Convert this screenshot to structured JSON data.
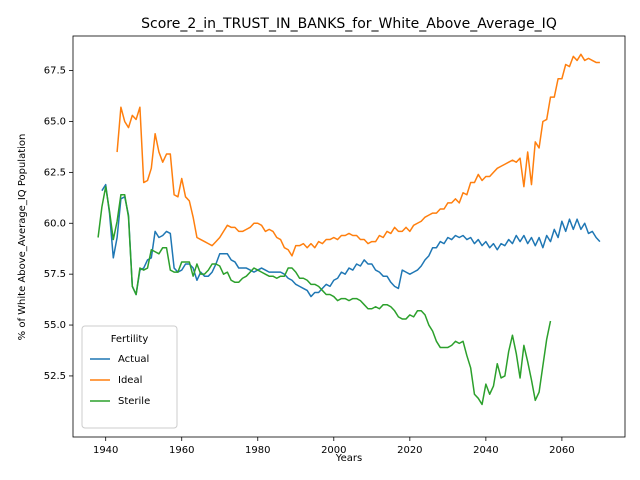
{
  "chart_data": {
    "type": "line",
    "title": "Score_2_in_TRUST_IN_BANKS_for_White_Above_Average_IQ",
    "xlabel": "Years",
    "ylabel": "% of White Above_Average_IQ Population",
    "legend_title": "Fertility",
    "legend": "lower left",
    "xlim": [
      1931.4,
      2076.6
    ],
    "ylim": [
      49.5,
      69.2
    ],
    "xticks": [
      1940,
      1960,
      1980,
      2000,
      2020,
      2040,
      2060
    ],
    "yticks": [
      52.5,
      {
        "value": 55,
        "label": "55.0"
      },
      57.5,
      {
        "value": 60,
        "label": "60.0"
      },
      62.5,
      {
        "value": 65,
        "label": "65.0"
      },
      67.5
    ],
    "x": [
      1938,
      1939,
      1940,
      1941,
      1942,
      1943,
      1944,
      1945,
      1946,
      1947,
      1948,
      1949,
      1950,
      1951,
      1952,
      1953,
      1954,
      1955,
      1956,
      1957,
      1958,
      1959,
      1960,
      1961,
      1962,
      1963,
      1964,
      1965,
      1966,
      1967,
      1968,
      1969,
      1970,
      1971,
      1972,
      1973,
      1974,
      1975,
      1976,
      1977,
      1978,
      1979,
      1980,
      1981,
      1982,
      1983,
      1984,
      1985,
      1986,
      1987,
      1988,
      1989,
      1990,
      1991,
      1992,
      1993,
      1994,
      1995,
      1996,
      1997,
      1998,
      1999,
      2000,
      2001,
      2002,
      2003,
      2004,
      2005,
      2006,
      2007,
      2008,
      2009,
      2010,
      2011,
      2012,
      2013,
      2014,
      2015,
      2016,
      2017,
      2018,
      2019,
      2020,
      2021,
      2022,
      2023,
      2024,
      2025,
      2026,
      2027,
      2028,
      2029,
      2030,
      2031,
      2032,
      2033,
      2034,
      2035,
      2036,
      2037,
      2038,
      2039,
      2040,
      2041,
      2042,
      2043,
      2044,
      2045,
      2046,
      2047,
      2048,
      2049,
      2050,
      2051,
      2052,
      2053,
      2054,
      2055,
      2056,
      2057,
      2058,
      2059,
      2060,
      2061,
      2062,
      2063,
      2064,
      2065,
      2066,
      2067,
      2068,
      2069,
      2070
    ],
    "series": [
      {
        "name": "Actual",
        "color": "#1f77b4",
        "values": [
          null,
          61.6,
          61.9,
          60.5,
          58.3,
          59.3,
          61.2,
          61.3,
          60.4,
          56.9,
          56.5,
          57.7,
          57.8,
          58.2,
          58.3,
          59.6,
          59.3,
          59.4,
          59.6,
          59.5,
          57.8,
          57.6,
          57.7,
          58.0,
          58.0,
          57.8,
          57.2,
          57.6,
          57.4,
          57.4,
          57.6,
          58.0,
          58.5,
          58.5,
          58.5,
          58.2,
          58.1,
          57.8,
          57.8,
          57.8,
          57.7,
          57.6,
          57.7,
          57.8,
          57.7,
          57.6,
          57.6,
          57.6,
          57.6,
          57.5,
          57.3,
          57.2,
          57.0,
          56.9,
          56.8,
          56.7,
          56.4,
          56.6,
          56.6,
          56.8,
          57.0,
          56.9,
          57.2,
          57.3,
          57.6,
          57.5,
          57.8,
          57.7,
          58.0,
          57.9,
          58.2,
          58.0,
          58.0,
          57.7,
          57.6,
          57.4,
          57.4,
          57.1,
          56.9,
          56.8,
          57.7,
          57.6,
          57.5,
          57.6,
          57.7,
          57.9,
          58.2,
          58.4,
          58.8,
          58.8,
          59.1,
          59.0,
          59.3,
          59.2,
          59.4,
          59.3,
          59.4,
          59.2,
          59.3,
          59.0,
          59.2,
          58.9,
          59.1,
          58.8,
          59.0,
          58.7,
          59.0,
          58.9,
          59.2,
          59.0,
          59.4,
          59.1,
          59.4,
          59.0,
          59.3,
          58.9,
          59.3,
          58.8,
          59.4,
          59.1,
          59.7,
          59.3,
          60.1,
          59.6,
          60.2,
          59.7,
          60.2,
          59.7,
          60.0,
          59.5,
          59.6,
          59.3,
          59.1
        ]
      },
      {
        "name": "Ideal",
        "color": "#ff7f0e",
        "values": [
          null,
          null,
          null,
          null,
          null,
          63.5,
          65.7,
          65.0,
          64.7,
          65.3,
          65.1,
          65.7,
          62.0,
          62.1,
          62.7,
          64.4,
          63.5,
          63.0,
          63.4,
          63.4,
          61.4,
          61.3,
          62.2,
          61.3,
          61.1,
          60.3,
          59.3,
          59.2,
          59.1,
          59.0,
          58.9,
          59.1,
          59.3,
          59.6,
          59.9,
          59.8,
          59.8,
          59.6,
          59.6,
          59.7,
          59.8,
          60.0,
          60.0,
          59.9,
          59.6,
          59.7,
          59.6,
          59.3,
          59.2,
          58.8,
          58.7,
          58.4,
          58.9,
          58.9,
          59.0,
          58.8,
          59.0,
          58.8,
          59.1,
          59.0,
          59.2,
          59.2,
          59.3,
          59.2,
          59.4,
          59.4,
          59.5,
          59.4,
          59.4,
          59.2,
          59.2,
          59.0,
          59.1,
          59.1,
          59.4,
          59.3,
          59.6,
          59.5,
          59.8,
          59.6,
          59.6,
          59.8,
          59.6,
          59.9,
          60.0,
          60.1,
          60.3,
          60.4,
          60.5,
          60.5,
          60.7,
          60.7,
          61.0,
          61.0,
          61.2,
          61.0,
          61.5,
          61.4,
          62.0,
          62.0,
          62.4,
          62.1,
          62.3,
          62.3,
          62.5,
          62.7,
          62.8,
          62.9,
          63.0,
          63.1,
          63.0,
          63.2,
          61.8,
          63.5,
          61.9,
          64.0,
          63.7,
          65.0,
          65.1,
          66.2,
          66.2,
          67.1,
          67.1,
          67.8,
          67.7,
          68.2,
          68.0,
          68.3,
          68.0,
          68.1,
          68.0,
          67.9,
          67.9
        ]
      },
      {
        "name": "Sterile",
        "color": "#2ca02c",
        "values": [
          59.3,
          60.8,
          61.8,
          60.6,
          59.2,
          60.1,
          61.4,
          61.4,
          60.3,
          56.9,
          56.5,
          57.8,
          57.7,
          57.8,
          58.7,
          58.6,
          58.5,
          58.8,
          58.8,
          57.7,
          57.6,
          57.6,
          58.1,
          58.1,
          58.1,
          57.4,
          58.0,
          57.5,
          57.5,
          57.7,
          58.0,
          58.0,
          57.9,
          57.5,
          57.6,
          57.2,
          57.1,
          57.1,
          57.3,
          57.4,
          57.6,
          57.8,
          57.7,
          57.6,
          57.5,
          57.4,
          57.4,
          57.3,
          57.4,
          57.4,
          57.8,
          57.8,
          57.6,
          57.3,
          57.3,
          57.2,
          57.0,
          57.0,
          56.9,
          56.7,
          56.5,
          56.5,
          56.4,
          56.2,
          56.3,
          56.3,
          56.2,
          56.3,
          56.3,
          56.2,
          56.0,
          55.8,
          55.8,
          55.9,
          55.8,
          56.0,
          56.0,
          55.9,
          55.7,
          55.4,
          55.3,
          55.3,
          55.5,
          55.4,
          55.7,
          55.7,
          55.5,
          55.0,
          54.7,
          54.2,
          53.9,
          53.9,
          53.9,
          54.0,
          54.2,
          54.1,
          54.2,
          53.5,
          52.9,
          51.6,
          51.4,
          51.1,
          52.1,
          51.6,
          52.0,
          53.1,
          52.4,
          52.5,
          53.7,
          54.5,
          53.6,
          52.4,
          54.0,
          53.2,
          52.3,
          51.3,
          51.7,
          53.0,
          54.3,
          55.2,
          null,
          null,
          null,
          null,
          null,
          null,
          null,
          null,
          null,
          null,
          null,
          null,
          null
        ]
      }
    ]
  }
}
